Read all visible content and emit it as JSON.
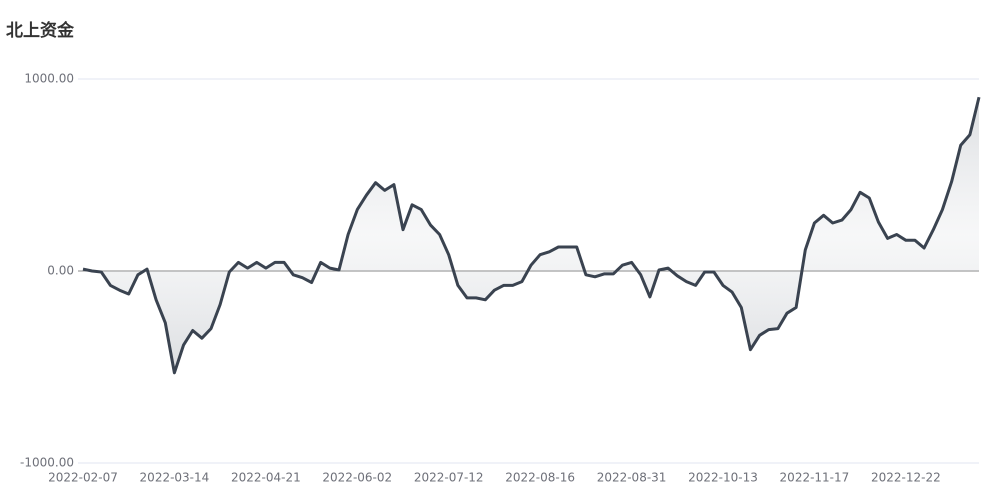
{
  "chart_data": {
    "type": "line",
    "title": "北上资金",
    "categories": [
      "2022-02-07",
      null,
      null,
      null,
      null,
      null,
      null,
      null,
      null,
      null,
      "2022-03-14",
      null,
      null,
      null,
      null,
      null,
      null,
      null,
      null,
      null,
      "2022-04-21",
      null,
      null,
      null,
      null,
      null,
      null,
      null,
      null,
      null,
      "2022-06-02",
      null,
      null,
      null,
      null,
      null,
      null,
      null,
      null,
      null,
      "2022-07-12",
      null,
      null,
      null,
      null,
      null,
      null,
      null,
      null,
      null,
      "2022-08-16",
      null,
      null,
      null,
      null,
      null,
      null,
      null,
      null,
      null,
      "2022-08-31",
      null,
      null,
      null,
      null,
      null,
      null,
      null,
      null,
      null,
      "2022-10-13",
      null,
      null,
      null,
      null,
      null,
      null,
      null,
      null,
      null,
      "2022-11-17",
      null,
      null,
      null,
      null,
      null,
      null,
      null,
      null,
      null,
      "2022-12-22",
      null,
      null,
      null,
      null,
      null,
      null,
      null,
      null
    ],
    "values": [
      10,
      0,
      -5,
      -75,
      -100,
      -120,
      -20,
      10,
      -150,
      -270,
      -530,
      -385,
      -310,
      -350,
      -300,
      -175,
      -5,
      45,
      15,
      45,
      15,
      45,
      45,
      -20,
      -35,
      -60,
      45,
      15,
      5,
      190,
      320,
      395,
      460,
      420,
      450,
      215,
      345,
      320,
      240,
      190,
      85,
      -75,
      -140,
      -140,
      -150,
      -100,
      -75,
      -75,
      -55,
      30,
      85,
      100,
      125,
      125,
      125,
      -20,
      -30,
      -15,
      -15,
      30,
      45,
      -20,
      -135,
      5,
      15,
      -25,
      -55,
      -75,
      -5,
      -5,
      -75,
      -110,
      -190,
      -410,
      -335,
      -305,
      -300,
      -220,
      -190,
      110,
      250,
      290,
      250,
      265,
      320,
      410,
      380,
      255,
      170,
      190,
      160,
      160,
      120,
      215,
      320,
      465,
      655,
      710,
      905
    ],
    "color": "#3a4350",
    "ylim": [
      -1000,
      1000
    ],
    "yticks": [
      {
        "value": -1000,
        "label": "-1000.00"
      },
      {
        "value": 0,
        "label": "0.00"
      },
      {
        "value": 1000,
        "label": "1000.00"
      }
    ],
    "grid": true
  }
}
